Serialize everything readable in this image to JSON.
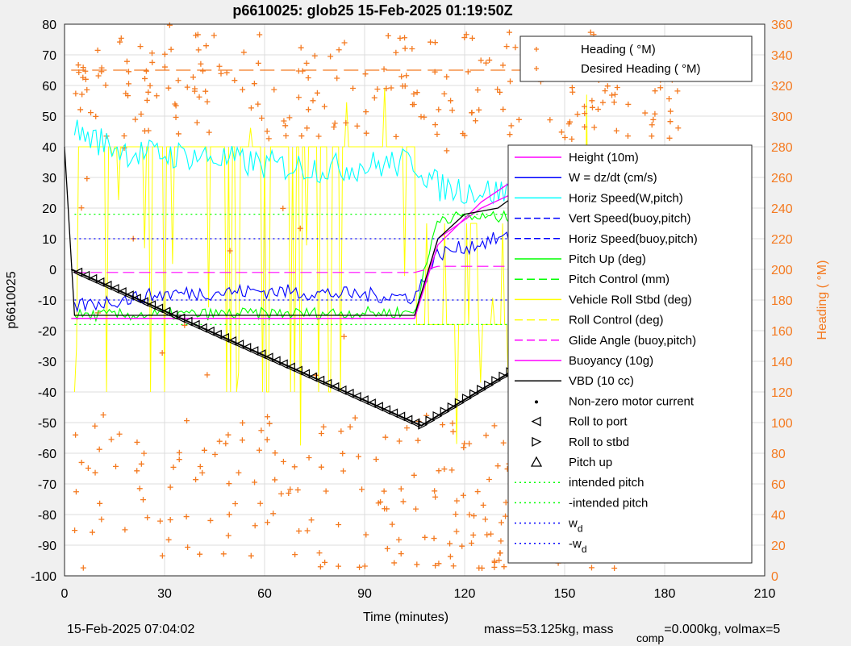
{
  "chart_data": {
    "type": "line",
    "title": "p6610025: glob25 15-Feb-2025 01:19:50Z",
    "xlabel": "Time (minutes)",
    "ylabel_left": "p6610025",
    "ylabel_right": "Heading (  °M)",
    "xlim": [
      0,
      210
    ],
    "ylim_left": [
      -100,
      80
    ],
    "ylim_right": [
      0,
      360
    ],
    "x_ticks": [
      "0",
      "30",
      "60",
      "90",
      "120",
      "150",
      "180",
      "210"
    ],
    "y_left_ticks": [
      "-100",
      "-90",
      "-80",
      "-70",
      "-60",
      "-50",
      "-40",
      "-30",
      "-20",
      "-10",
      "0",
      "10",
      "20",
      "30",
      "40",
      "50",
      "60",
      "70",
      "80"
    ],
    "y_right_ticks": [
      "0",
      "20",
      "40",
      "60",
      "80",
      "100",
      "120",
      "140",
      "160",
      "180",
      "200",
      "220",
      "240",
      "260",
      "280",
      "300",
      "320",
      "340",
      "360"
    ],
    "grid": true,
    "legend_top": [
      "Heading (  °M)",
      "Desired Heading (   °M)"
    ],
    "legend_main": [
      "Height (10m)",
      "W = dz/dt (cm/s)",
      "Horiz Speed(W,pitch)",
      "Vert Speed(buoy,pitch)",
      "Horiz Speed(buoy,pitch)",
      "Pitch Up (deg)",
      "Pitch Control (mm)",
      "Vehicle Roll Stbd (deg)",
      "Roll Control (deg)",
      "Glide Angle (buoy,pitch)",
      "Buoyancy (10g)",
      "VBD (10 cc)",
      "Non-zero motor current",
      "Roll to port",
      "Roll to stbd",
      "Pitch up",
      "intended pitch",
      "-intended pitch",
      "w",
      "-w"
    ],
    "legend_subscript": "d",
    "colors": {
      "height": "#ff00ff",
      "w": "#0000ff",
      "horiz_w": "#00ffff",
      "vert_buoy": "#0000ff",
      "pitch": "#00ff00",
      "roll": "#ffff00",
      "glide": "#ff00ff",
      "buoyancy": "#ff00ff",
      "vbd": "#000000",
      "heading": "#f47a20",
      "intended": "#00ff00",
      "wd": "#0000ff",
      "depth": "#000000"
    },
    "depth_series": {
      "x": [
        2,
        107,
        185
      ],
      "y": [
        0,
        -51,
        0
      ]
    },
    "height_series": {
      "x": [
        2,
        105,
        112,
        125,
        140,
        150,
        165,
        185
      ],
      "y": [
        -16,
        -16,
        8,
        22,
        33,
        38,
        38,
        38
      ]
    },
    "vbd_series": {
      "x": [
        0,
        3,
        105,
        112,
        120,
        130,
        140,
        148,
        155,
        185
      ],
      "y": [
        40,
        -15,
        -15,
        10,
        18,
        20,
        28,
        32,
        37,
        37
      ]
    },
    "buoyancy_series": {
      "x": [
        3,
        105,
        112,
        125,
        135,
        145,
        185
      ],
      "y": [
        -16,
        -16,
        10,
        20,
        25,
        38,
        39
      ]
    },
    "horiz_speed_series": {
      "x": [
        3,
        20,
        40,
        60,
        80,
        105,
        112,
        130,
        150,
        170,
        185
      ],
      "y": [
        45,
        38,
        37,
        34,
        33,
        35,
        27,
        25,
        27,
        26,
        26
      ]
    },
    "w_series": {
      "x": [
        3,
        30,
        60,
        105,
        112,
        130,
        150,
        185
      ],
      "y": [
        -12,
        -8,
        -7,
        -9,
        5,
        10,
        10,
        12
      ]
    },
    "pitch_series": {
      "x": [
        3,
        105,
        112,
        185
      ],
      "y": [
        -15,
        -14,
        17,
        17
      ]
    },
    "glide_series": {
      "x": [
        3,
        105,
        112,
        185
      ],
      "y": [
        -1,
        -1,
        1,
        1
      ]
    },
    "intended_pitch": 18,
    "wd": 10
  },
  "footer": {
    "timestamp": "15-Feb-2025 07:04:02",
    "mass_text": "mass=53.125kg, mass",
    "comp_sub": "comp",
    "mass_tail": "=0.000kg, volmax=5"
  }
}
